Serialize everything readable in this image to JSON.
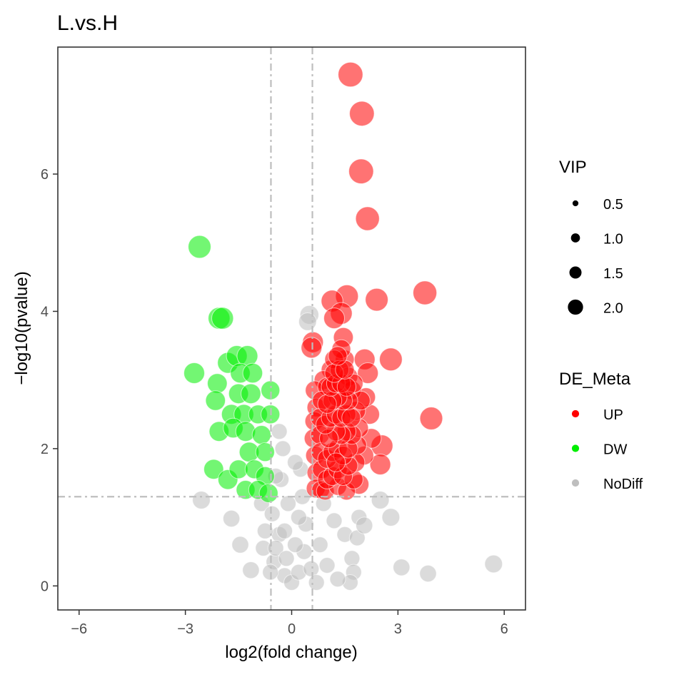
{
  "chart_data": {
    "type": "scatter",
    "title": "L.vs.H",
    "xlabel": "log2(fold change)",
    "ylabel": "−log10(pvalue)",
    "xlim": [
      -6.6,
      6.6
    ],
    "ylim": [
      -0.35,
      7.85
    ],
    "xticks": [
      -6,
      -3,
      0,
      3,
      6
    ],
    "xtick_labels": [
      "−6",
      "−3",
      "0",
      "3",
      "6"
    ],
    "yticks": [
      0,
      2,
      4,
      6
    ],
    "ytick_labels": [
      "0",
      "2",
      "4",
      "6"
    ],
    "grid": false,
    "threshold_lines": {
      "x": [
        -0.585,
        0.585
      ],
      "y": 1.3
    },
    "legend_placement": "right",
    "size_legend": {
      "title": "VIP",
      "entries": [
        {
          "label": "0.5",
          "value": 0.5
        },
        {
          "label": "1.0",
          "value": 1.0
        },
        {
          "label": "1.5",
          "value": 1.5
        },
        {
          "label": "2.0",
          "value": 2.0
        }
      ]
    },
    "color_legend": {
      "title": "DE_Meta",
      "entries": [
        {
          "label": "UP",
          "color": "#ff0000"
        },
        {
          "label": "DW",
          "color": "#00ee00"
        },
        {
          "label": "NoDiff",
          "color": "#bebebe"
        }
      ]
    },
    "series": [
      {
        "name": "UP",
        "color": "#ff0000",
        "points": [
          {
            "x": 1.66,
            "y": 7.45,
            "vip": 1.9
          },
          {
            "x": 1.98,
            "y": 6.88,
            "vip": 1.9
          },
          {
            "x": 1.96,
            "y": 6.04,
            "vip": 1.9
          },
          {
            "x": 2.14,
            "y": 5.35,
            "vip": 1.8
          },
          {
            "x": 3.76,
            "y": 4.27,
            "vip": 1.8
          },
          {
            "x": 2.4,
            "y": 4.17,
            "vip": 1.7
          },
          {
            "x": 1.56,
            "y": 4.22,
            "vip": 1.7
          },
          {
            "x": 1.14,
            "y": 4.15,
            "vip": 1.6
          },
          {
            "x": 1.4,
            "y": 3.97,
            "vip": 1.6
          },
          {
            "x": 1.2,
            "y": 3.9,
            "vip": 1.5
          },
          {
            "x": 0.6,
            "y": 3.55,
            "vip": 1.5
          },
          {
            "x": 0.56,
            "y": 3.47,
            "vip": 1.5
          },
          {
            "x": 1.46,
            "y": 3.62,
            "vip": 1.4
          },
          {
            "x": 2.8,
            "y": 3.3,
            "vip": 1.7
          },
          {
            "x": 2.06,
            "y": 3.3,
            "vip": 1.5
          },
          {
            "x": 2.15,
            "y": 3.1,
            "vip": 1.5
          },
          {
            "x": 3.94,
            "y": 2.44,
            "vip": 1.7
          },
          {
            "x": 2.55,
            "y": 2.04,
            "vip": 1.6
          },
          {
            "x": 2.5,
            "y": 1.77,
            "vip": 1.5
          },
          {
            "x": 2.2,
            "y": 2.5,
            "vip": 1.4
          },
          {
            "x": 2.25,
            "y": 2.15,
            "vip": 1.4
          },
          {
            "x": 1.9,
            "y": 1.48,
            "vip": 1.4
          },
          {
            "x": 2.05,
            "y": 1.9,
            "vip": 1.3
          },
          {
            "x": 2.1,
            "y": 2.75,
            "vip": 1.3
          },
          {
            "x": 1.5,
            "y": 3.3,
            "vip": 1.3
          },
          {
            "x": 1.6,
            "y": 3.05,
            "vip": 1.3
          },
          {
            "x": 1.7,
            "y": 2.85,
            "vip": 1.3
          },
          {
            "x": 1.1,
            "y": 3.15,
            "vip": 1.3
          },
          {
            "x": 0.9,
            "y": 3.0,
            "vip": 1.3
          },
          {
            "x": 0.65,
            "y": 2.85,
            "vip": 1.3
          },
          {
            "x": 0.7,
            "y": 2.6,
            "vip": 1.3
          },
          {
            "x": 0.64,
            "y": 2.4,
            "vip": 1.3
          },
          {
            "x": 0.62,
            "y": 2.15,
            "vip": 1.3
          },
          {
            "x": 0.66,
            "y": 1.9,
            "vip": 1.3
          },
          {
            "x": 0.7,
            "y": 1.65,
            "vip": 1.3
          },
          {
            "x": 0.68,
            "y": 1.42,
            "vip": 1.3
          },
          {
            "x": 0.82,
            "y": 1.4,
            "vip": 1.2
          },
          {
            "x": 0.95,
            "y": 1.38,
            "vip": 1.2
          },
          {
            "x": 1.3,
            "y": 1.45,
            "vip": 1.2
          },
          {
            "x": 1.55,
            "y": 1.38,
            "vip": 1.2
          },
          {
            "x": 1.75,
            "y": 1.55,
            "vip": 1.3
          },
          {
            "x": 1.8,
            "y": 1.8,
            "vip": 1.3
          },
          {
            "x": 1.85,
            "y": 2.05,
            "vip": 1.3
          },
          {
            "x": 1.9,
            "y": 2.3,
            "vip": 1.3
          },
          {
            "x": 1.82,
            "y": 2.55,
            "vip": 1.3
          },
          {
            "x": 1.95,
            "y": 2.7,
            "vip": 1.3
          },
          {
            "x": 1.75,
            "y": 2.95,
            "vip": 1.3
          },
          {
            "x": 1.4,
            "y": 3.45,
            "vip": 1.3
          },
          {
            "x": 1.2,
            "y": 3.3,
            "vip": 1.3
          },
          {
            "x": 1.0,
            "y": 2.9,
            "vip": 1.3
          },
          {
            "x": 0.85,
            "y": 2.7,
            "vip": 1.3
          },
          {
            "x": 0.8,
            "y": 2.45,
            "vip": 1.3
          },
          {
            "x": 0.8,
            "y": 2.2,
            "vip": 1.3
          },
          {
            "x": 0.82,
            "y": 1.95,
            "vip": 1.3
          },
          {
            "x": 0.85,
            "y": 1.7,
            "vip": 1.3
          },
          {
            "x": 1.0,
            "y": 1.55,
            "vip": 1.3
          },
          {
            "x": 1.15,
            "y": 1.6,
            "vip": 1.3
          },
          {
            "x": 1.3,
            "y": 1.7,
            "vip": 1.3
          },
          {
            "x": 1.45,
            "y": 1.6,
            "vip": 1.3
          },
          {
            "x": 1.6,
            "y": 1.75,
            "vip": 1.3
          },
          {
            "x": 1.0,
            "y": 1.85,
            "vip": 1.3
          },
          {
            "x": 1.15,
            "y": 1.95,
            "vip": 1.3
          },
          {
            "x": 1.3,
            "y": 2.0,
            "vip": 1.3
          },
          {
            "x": 1.45,
            "y": 1.9,
            "vip": 1.3
          },
          {
            "x": 1.6,
            "y": 2.0,
            "vip": 1.3
          },
          {
            "x": 1.7,
            "y": 2.2,
            "vip": 1.3
          },
          {
            "x": 1.55,
            "y": 2.25,
            "vip": 1.3
          },
          {
            "x": 1.4,
            "y": 2.2,
            "vip": 1.3
          },
          {
            "x": 1.25,
            "y": 2.25,
            "vip": 1.3
          },
          {
            "x": 1.05,
            "y": 2.15,
            "vip": 1.3
          },
          {
            "x": 0.95,
            "y": 2.35,
            "vip": 1.3
          },
          {
            "x": 1.1,
            "y": 2.45,
            "vip": 1.3
          },
          {
            "x": 1.25,
            "y": 2.5,
            "vip": 1.3
          },
          {
            "x": 1.4,
            "y": 2.45,
            "vip": 1.3
          },
          {
            "x": 1.55,
            "y": 2.5,
            "vip": 1.3
          },
          {
            "x": 1.68,
            "y": 2.45,
            "vip": 1.3
          },
          {
            "x": 1.6,
            "y": 2.7,
            "vip": 1.3
          },
          {
            "x": 1.45,
            "y": 2.7,
            "vip": 1.3
          },
          {
            "x": 1.3,
            "y": 2.75,
            "vip": 1.3
          },
          {
            "x": 1.15,
            "y": 2.7,
            "vip": 1.3
          },
          {
            "x": 1.0,
            "y": 2.65,
            "vip": 1.3
          },
          {
            "x": 1.1,
            "y": 2.9,
            "vip": 1.3
          },
          {
            "x": 1.25,
            "y": 2.95,
            "vip": 1.3
          },
          {
            "x": 1.4,
            "y": 2.95,
            "vip": 1.3
          },
          {
            "x": 1.55,
            "y": 2.9,
            "vip": 1.3
          },
          {
            "x": 1.35,
            "y": 3.15,
            "vip": 1.3
          },
          {
            "x": 1.2,
            "y": 3.1,
            "vip": 1.3
          },
          {
            "x": 1.5,
            "y": 3.15,
            "vip": 1.3
          },
          {
            "x": 1.3,
            "y": 3.35,
            "vip": 1.3
          },
          {
            "x": 1.25,
            "y": 1.8,
            "vip": 1.3
          }
        ]
      },
      {
        "name": "DW",
        "color": "#00ee00",
        "points": [
          {
            "x": -2.6,
            "y": 4.94,
            "vip": 1.7
          },
          {
            "x": -2.05,
            "y": 3.9,
            "vip": 1.6
          },
          {
            "x": -1.95,
            "y": 3.9,
            "vip": 1.6
          },
          {
            "x": -2.75,
            "y": 3.1,
            "vip": 1.5
          },
          {
            "x": -1.8,
            "y": 3.25,
            "vip": 1.5
          },
          {
            "x": -1.55,
            "y": 3.35,
            "vip": 1.5
          },
          {
            "x": -1.25,
            "y": 3.35,
            "vip": 1.5
          },
          {
            "x": -2.1,
            "y": 2.95,
            "vip": 1.4
          },
          {
            "x": -1.45,
            "y": 3.1,
            "vip": 1.4
          },
          {
            "x": -1.1,
            "y": 3.1,
            "vip": 1.4
          },
          {
            "x": -2.15,
            "y": 2.7,
            "vip": 1.4
          },
          {
            "x": -1.5,
            "y": 2.8,
            "vip": 1.4
          },
          {
            "x": -1.15,
            "y": 2.8,
            "vip": 1.4
          },
          {
            "x": -0.6,
            "y": 2.85,
            "vip": 1.3
          },
          {
            "x": -1.7,
            "y": 2.5,
            "vip": 1.4
          },
          {
            "x": -1.35,
            "y": 2.5,
            "vip": 1.4
          },
          {
            "x": -0.95,
            "y": 2.5,
            "vip": 1.3
          },
          {
            "x": -0.6,
            "y": 2.5,
            "vip": 1.3
          },
          {
            "x": -2.05,
            "y": 2.25,
            "vip": 1.4
          },
          {
            "x": -1.65,
            "y": 2.3,
            "vip": 1.4
          },
          {
            "x": -1.3,
            "y": 2.25,
            "vip": 1.4
          },
          {
            "x": -0.85,
            "y": 2.2,
            "vip": 1.3
          },
          {
            "x": -1.2,
            "y": 1.95,
            "vip": 1.4
          },
          {
            "x": -0.75,
            "y": 1.95,
            "vip": 1.3
          },
          {
            "x": -2.2,
            "y": 1.7,
            "vip": 1.4
          },
          {
            "x": -1.8,
            "y": 1.55,
            "vip": 1.4
          },
          {
            "x": -1.5,
            "y": 1.7,
            "vip": 1.3
          },
          {
            "x": -1.05,
            "y": 1.7,
            "vip": 1.3
          },
          {
            "x": -0.75,
            "y": 1.6,
            "vip": 1.3
          },
          {
            "x": -1.3,
            "y": 1.4,
            "vip": 1.3
          },
          {
            "x": -0.95,
            "y": 1.4,
            "vip": 1.3
          },
          {
            "x": -0.65,
            "y": 1.35,
            "vip": 1.3
          }
        ]
      },
      {
        "name": "NoDiff",
        "color": "#bebebe",
        "points": [
          {
            "x": -2.55,
            "y": 1.25,
            "vip": 1.2
          },
          {
            "x": -1.7,
            "y": 0.98,
            "vip": 1.1
          },
          {
            "x": -1.45,
            "y": 0.6,
            "vip": 1.1
          },
          {
            "x": -1.15,
            "y": 0.23,
            "vip": 1.1
          },
          {
            "x": -0.8,
            "y": 0.55,
            "vip": 1.0
          },
          {
            "x": -0.85,
            "y": 1.2,
            "vip": 1.0
          },
          {
            "x": -0.55,
            "y": 1.05,
            "vip": 1.0
          },
          {
            "x": -0.35,
            "y": 0.75,
            "vip": 1.0
          },
          {
            "x": -0.5,
            "y": 0.35,
            "vip": 1.0
          },
          {
            "x": -0.2,
            "y": 0.15,
            "vip": 1.0
          },
          {
            "x": 0.0,
            "y": 0.05,
            "vip": 1.0
          },
          {
            "x": 0.2,
            "y": 0.2,
            "vip": 1.0
          },
          {
            "x": 0.35,
            "y": 0.5,
            "vip": 1.0
          },
          {
            "x": 0.4,
            "y": 0.9,
            "vip": 1.0
          },
          {
            "x": 0.3,
            "y": 1.3,
            "vip": 1.0
          },
          {
            "x": 0.25,
            "y": 1.7,
            "vip": 1.0
          },
          {
            "x": -0.3,
            "y": 1.55,
            "vip": 1.0
          },
          {
            "x": -0.25,
            "y": 2.0,
            "vip": 1.0
          },
          {
            "x": -0.35,
            "y": 2.25,
            "vip": 1.0
          },
          {
            "x": 0.5,
            "y": 3.95,
            "vip": 1.3
          },
          {
            "x": 0.45,
            "y": 3.85,
            "vip": 1.2
          },
          {
            "x": 0.9,
            "y": 1.2,
            "vip": 1.0
          },
          {
            "x": 1.2,
            "y": 0.95,
            "vip": 1.0
          },
          {
            "x": 1.5,
            "y": 0.75,
            "vip": 1.0
          },
          {
            "x": 1.7,
            "y": 0.4,
            "vip": 1.0
          },
          {
            "x": 1.75,
            "y": 0.2,
            "vip": 1.0
          },
          {
            "x": 1.65,
            "y": 0.05,
            "vip": 1.0
          },
          {
            "x": 1.3,
            "y": 0.1,
            "vip": 1.0
          },
          {
            "x": 1.0,
            "y": 0.3,
            "vip": 1.0
          },
          {
            "x": 0.8,
            "y": 0.6,
            "vip": 1.0
          },
          {
            "x": 1.9,
            "y": 1.0,
            "vip": 1.0
          },
          {
            "x": 1.85,
            "y": 0.7,
            "vip": 1.0
          },
          {
            "x": 2.05,
            "y": 0.88,
            "vip": 1.1
          },
          {
            "x": 2.5,
            "y": 1.25,
            "vip": 1.2
          },
          {
            "x": 2.8,
            "y": 1.0,
            "vip": 1.2
          },
          {
            "x": 3.1,
            "y": 0.27,
            "vip": 1.1
          },
          {
            "x": 3.85,
            "y": 0.18,
            "vip": 1.1
          },
          {
            "x": 5.7,
            "y": 0.32,
            "vip": 1.2
          },
          {
            "x": -0.75,
            "y": 0.8,
            "vip": 1.0
          },
          {
            "x": -0.6,
            "y": 0.2,
            "vip": 1.0
          },
          {
            "x": -0.45,
            "y": 0.55,
            "vip": 1.0
          },
          {
            "x": -0.15,
            "y": 0.4,
            "vip": 1.0
          },
          {
            "x": 0.1,
            "y": 0.6,
            "vip": 1.0
          },
          {
            "x": 0.2,
            "y": 1.0,
            "vip": 1.0
          },
          {
            "x": -0.1,
            "y": 1.2,
            "vip": 1.0
          },
          {
            "x": 0.55,
            "y": 0.25,
            "vip": 1.0
          },
          {
            "x": 0.7,
            "y": 0.05,
            "vip": 1.0
          },
          {
            "x": -0.45,
            "y": 1.6,
            "vip": 1.0
          },
          {
            "x": 0.1,
            "y": 1.8,
            "vip": 1.0
          },
          {
            "x": -0.2,
            "y": 0.8,
            "vip": 1.0
          }
        ]
      }
    ]
  }
}
